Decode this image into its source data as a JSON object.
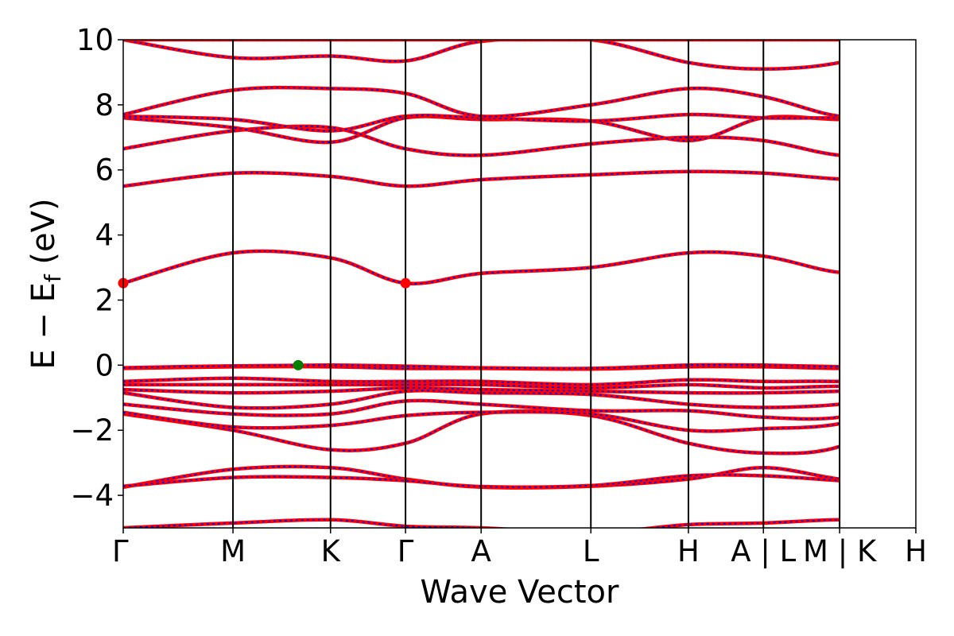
{
  "chart_data": {
    "type": "line",
    "title": "",
    "xlabel": "Wave Vector",
    "ylabel": "E − E_f (eV)",
    "ylabel_main": "E − E",
    "ylabel_sub": "f",
    "ylabel_unit": " (eV)",
    "ylim": [
      -5,
      10
    ],
    "yticks": [
      -4,
      -2,
      0,
      2,
      4,
      6,
      8,
      10
    ],
    "ytick_labels": [
      "−4",
      "−2",
      "0",
      "2",
      "4",
      "6",
      "8",
      "10"
    ],
    "xlim": [
      0,
      13.0
    ],
    "kpoints": [
      {
        "label": "Γ",
        "x": 0.0
      },
      {
        "label": "M",
        "x": 1.8
      },
      {
        "label": "K",
        "x": 3.4
      },
      {
        "label": "Γ",
        "x": 4.63
      },
      {
        "label": "A",
        "x": 5.87
      },
      {
        "label": "L",
        "x": 7.67
      },
      {
        "label": "H",
        "x": 9.27
      },
      {
        "label": "A | L",
        "x": 10.5
      },
      {
        "label": "M | K",
        "x": 11.75
      },
      {
        "label": "H",
        "x": 13.0
      }
    ],
    "grid": false,
    "legend": "none",
    "series_colors": {
      "solid": "#ff0000",
      "dashed": "#0000ff"
    },
    "markers": [
      {
        "x": 0.0,
        "y": 2.52,
        "color": "#ff0000"
      },
      {
        "x": 4.63,
        "y": 2.52,
        "color": "#ff0000"
      },
      {
        "x": 2.87,
        "y": 0.0,
        "color": "#008000"
      }
    ],
    "bands": [
      [
        -5.0,
        -4.85,
        -4.75,
        -4.95,
        -5.0,
        -5.15,
        -4.9,
        -4.85,
        -4.75,
        -4.8,
        -4.95,
        -5.0,
        -5.1
      ],
      [
        -3.75,
        -3.2,
        -3.15,
        -3.5,
        -3.75,
        -3.72,
        -3.5,
        -3.15,
        -3.5,
        -3.72,
        -3.35,
        -3.25,
        -3.2
      ],
      [
        -3.72,
        -3.45,
        -3.45,
        -3.55,
        -3.73,
        -3.7,
        -3.4,
        -3.4,
        -3.55,
        -3.7,
        -3.4,
        -3.5,
        -3.5
      ],
      [
        -1.5,
        -2.0,
        -2.6,
        -2.4,
        -1.5,
        -1.55,
        -2.4,
        -2.7,
        -2.5,
        -1.2,
        -2.35,
        -2.4,
        -2.45
      ],
      [
        -1.45,
        -1.9,
        -1.85,
        -1.55,
        -1.45,
        -1.5,
        -2.0,
        -1.95,
        -1.8,
        -1.1,
        -2.0,
        -1.8,
        -1.7
      ],
      [
        -1.2,
        -1.5,
        -1.5,
        -1.1,
        -1.2,
        -1.4,
        -1.4,
        -1.6,
        -1.6,
        -1.0,
        -1.65,
        -1.6,
        -1.55
      ],
      [
        -0.85,
        -1.3,
        -1.2,
        -0.8,
        -0.85,
        -0.9,
        -1.2,
        -1.3,
        -1.2,
        -0.85,
        -1.4,
        -1.5,
        -1.4
      ],
      [
        -0.75,
        -0.85,
        -0.8,
        -0.7,
        -0.75,
        -0.8,
        -0.85,
        -0.85,
        -0.8,
        -0.75,
        -0.85,
        -0.85,
        -0.8
      ],
      [
        -0.6,
        -0.6,
        -0.6,
        -0.6,
        -0.6,
        -0.7,
        -0.6,
        -0.7,
        -0.65,
        -0.7,
        -0.7,
        -0.7,
        -0.7
      ],
      [
        -0.5,
        -0.4,
        -0.5,
        -0.5,
        -0.5,
        -0.6,
        -0.45,
        -0.5,
        -0.5,
        -0.6,
        -0.5,
        -0.5,
        -0.5
      ],
      [
        -0.1,
        -0.05,
        -0.05,
        -0.1,
        -0.1,
        -0.12,
        -0.05,
        -0.05,
        -0.1,
        -0.1,
        -0.2,
        -0.15,
        -0.15
      ],
      [
        -0.08,
        -0.02,
        0.0,
        -0.03,
        -0.08,
        -0.1,
        0.0,
        0.0,
        -0.05,
        -0.1,
        -0.05,
        -0.05,
        -0.05
      ],
      [
        2.52,
        3.45,
        3.3,
        2.52,
        2.82,
        3.0,
        3.45,
        3.35,
        2.85,
        2.82,
        3.45,
        3.35,
        3.35
      ],
      [
        5.5,
        5.9,
        5.8,
        5.5,
        5.7,
        5.85,
        5.95,
        5.9,
        5.72,
        5.7,
        5.95,
        5.9,
        5.95
      ],
      [
        6.65,
        7.2,
        7.3,
        6.65,
        6.45,
        6.8,
        7.0,
        6.9,
        6.45,
        6.45,
        7.05,
        6.95,
        6.9
      ],
      [
        7.6,
        7.3,
        6.85,
        7.6,
        7.55,
        7.5,
        6.9,
        7.6,
        7.55,
        7.55,
        7.2,
        7.05,
        7.55
      ],
      [
        7.65,
        7.55,
        7.2,
        7.65,
        7.6,
        7.5,
        7.7,
        7.6,
        7.6,
        7.6,
        7.55,
        7.3,
        7.5
      ],
      [
        7.7,
        8.45,
        8.5,
        8.35,
        7.65,
        8.0,
        8.5,
        8.25,
        7.65,
        7.65,
        8.45,
        8.35,
        8.25
      ],
      [
        10.0,
        9.45,
        9.5,
        9.35,
        9.95,
        10.0,
        9.3,
        9.1,
        9.3,
        10.0,
        9.4,
        9.35,
        9.3
      ],
      [
        10.0,
        10.0,
        10.0,
        10.0,
        10.0,
        10.0,
        10.0,
        10.0,
        10.0,
        10.0,
        10.0,
        10.0,
        10.0
      ]
    ]
  }
}
